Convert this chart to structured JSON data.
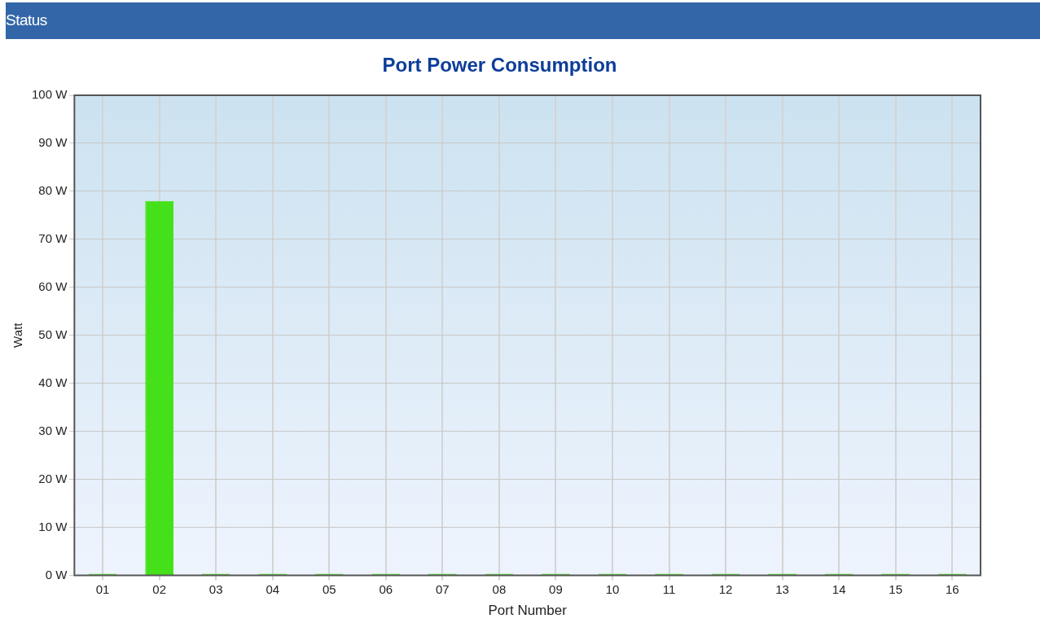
{
  "chart_data": {
    "type": "bar",
    "title": "Port Power Consumption",
    "xlabel": "Port Number",
    "ylabel": "Watt",
    "annotations": [
      "Status"
    ],
    "categories": [
      "01",
      "02",
      "03",
      "04",
      "05",
      "06",
      "07",
      "08",
      "09",
      "10",
      "11",
      "12",
      "13",
      "14",
      "15",
      "16"
    ],
    "values": [
      0,
      78,
      0,
      0,
      0,
      0,
      0,
      0,
      0,
      0,
      0,
      0,
      0,
      0,
      0,
      0
    ],
    "color": "#44e01a",
    "ylim": [
      0,
      100
    ],
    "yticks": [
      {
        "value": 0,
        "label": "0 W"
      },
      {
        "value": 10,
        "label": "10 W"
      },
      {
        "value": 20,
        "label": "20 W"
      },
      {
        "value": 30,
        "label": "30 W"
      },
      {
        "value": 40,
        "label": "40 W"
      },
      {
        "value": 50,
        "label": "50 W"
      },
      {
        "value": 60,
        "label": "60 W"
      },
      {
        "value": 70,
        "label": "70 W"
      },
      {
        "value": 80,
        "label": "80 W"
      },
      {
        "value": 90,
        "label": "90 W"
      },
      {
        "value": 100,
        "label": "100 W"
      }
    ],
    "grid": true,
    "legend": false
  }
}
